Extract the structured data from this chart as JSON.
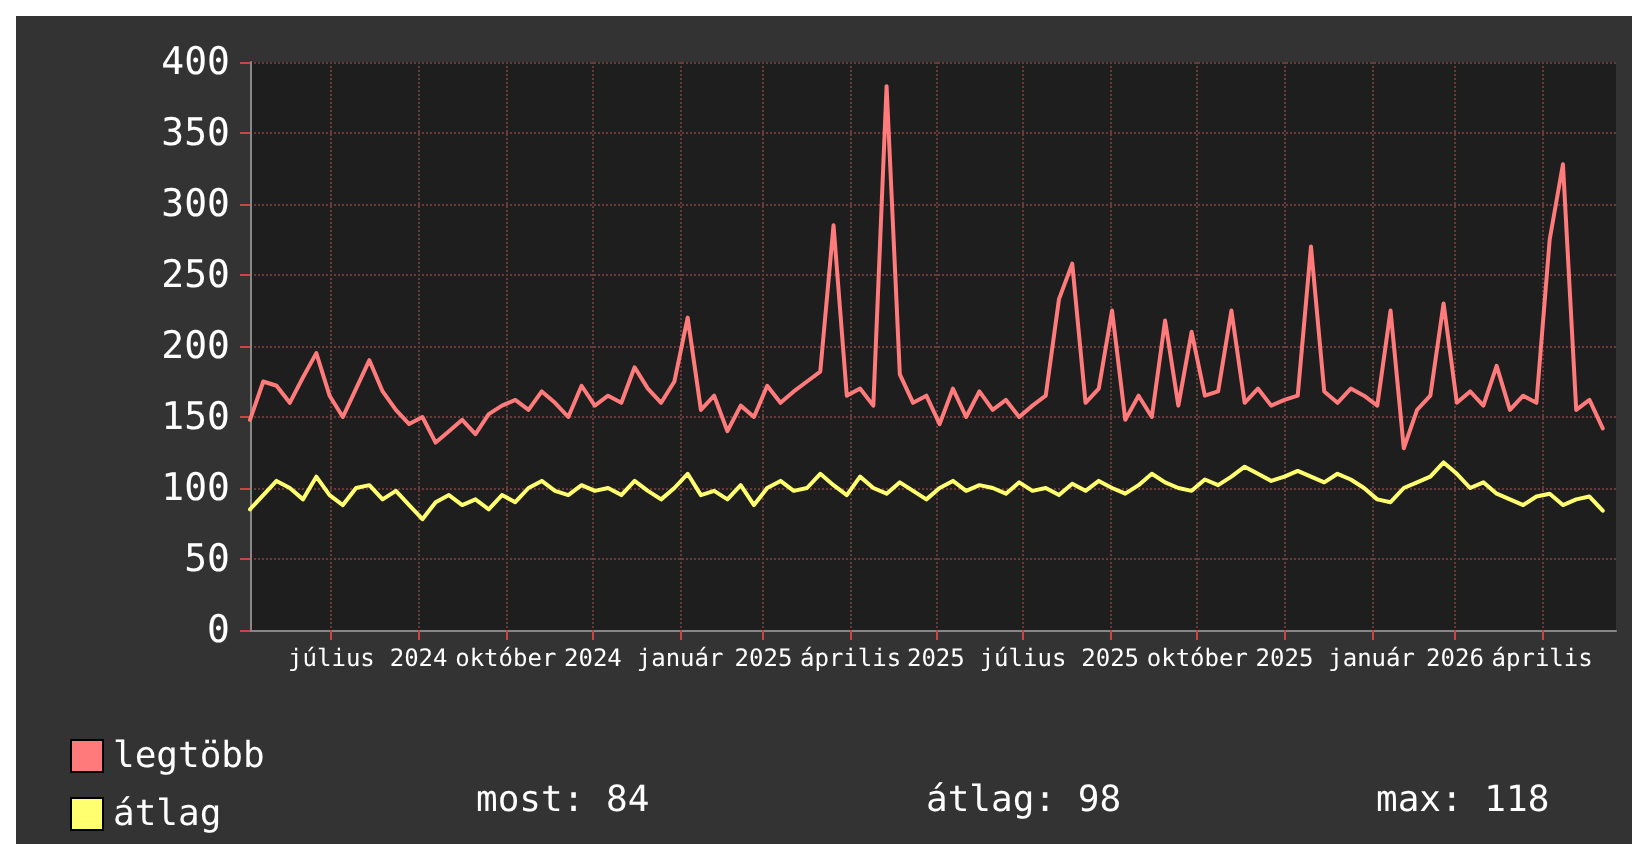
{
  "chart_data": {
    "type": "line",
    "x": [
      "2024-05-19",
      "2024-05-26",
      "2024-06-02",
      "2024-06-09",
      "2024-06-16",
      "2024-06-23",
      "2024-06-30",
      "2024-07-07",
      "2024-07-14",
      "2024-07-21",
      "2024-07-28",
      "2024-08-04",
      "2024-08-11",
      "2024-08-18",
      "2024-08-25",
      "2024-09-01",
      "2024-09-08",
      "2024-09-15",
      "2024-09-22",
      "2024-09-29",
      "2024-10-06",
      "2024-10-13",
      "2024-10-20",
      "2024-10-27",
      "2024-11-03",
      "2024-11-10",
      "2024-11-17",
      "2024-11-24",
      "2024-12-01",
      "2024-12-08",
      "2024-12-15",
      "2024-12-22",
      "2024-12-29",
      "2025-01-05",
      "2025-01-12",
      "2025-01-19",
      "2025-01-26",
      "2025-02-02",
      "2025-02-09",
      "2025-02-16",
      "2025-02-23",
      "2025-03-02",
      "2025-03-09",
      "2025-03-16",
      "2025-03-23",
      "2025-03-30",
      "2025-04-06",
      "2025-04-13",
      "2025-04-20",
      "2025-04-27",
      "2025-05-04",
      "2025-05-11",
      "2025-05-18",
      "2025-05-25",
      "2025-06-01",
      "2025-06-08",
      "2025-06-15",
      "2025-06-22",
      "2025-06-29",
      "2025-07-06",
      "2025-07-13",
      "2025-07-20",
      "2025-07-27",
      "2025-08-03",
      "2025-08-10",
      "2025-08-17",
      "2025-08-24",
      "2025-08-31",
      "2025-09-07",
      "2025-09-14",
      "2025-09-21",
      "2025-09-28",
      "2025-10-05",
      "2025-10-12",
      "2025-10-19",
      "2025-10-26",
      "2025-11-02",
      "2025-11-09",
      "2025-11-16",
      "2025-11-23",
      "2025-11-30",
      "2025-12-07",
      "2025-12-14",
      "2025-12-21",
      "2025-12-28",
      "2026-01-04",
      "2026-01-11",
      "2026-01-18",
      "2026-01-25",
      "2026-02-01",
      "2026-02-08",
      "2026-02-15",
      "2026-02-22",
      "2026-03-01",
      "2026-03-08",
      "2026-03-15",
      "2026-03-22",
      "2026-03-29",
      "2026-04-05",
      "2026-04-12",
      "2026-04-19",
      "2026-04-26",
      "2026-05-03"
    ],
    "series": [
      {
        "name": "legtöbb",
        "color": "#ff7a7a",
        "values": [
          148,
          175,
          172,
          160,
          178,
          195,
          165,
          150,
          170,
          190,
          168,
          155,
          145,
          150,
          132,
          140,
          148,
          138,
          152,
          158,
          162,
          155,
          168,
          160,
          150,
          172,
          158,
          165,
          160,
          185,
          170,
          160,
          175,
          220,
          155,
          165,
          140,
          158,
          150,
          172,
          160,
          168,
          175,
          182,
          285,
          165,
          170,
          158,
          383,
          180,
          160,
          165,
          145,
          170,
          150,
          168,
          155,
          162,
          150,
          158,
          165,
          233,
          258,
          160,
          170,
          225,
          148,
          165,
          150,
          218,
          158,
          210,
          165,
          168,
          225,
          160,
          170,
          158,
          162,
          165,
          270,
          168,
          160,
          170,
          165,
          158,
          225,
          128,
          155,
          165,
          230,
          160,
          168,
          158,
          186,
          155,
          165,
          160,
          275,
          328,
          155,
          162,
          142
        ]
      },
      {
        "name": "átlag",
        "color": "#ffff70",
        "values": [
          85,
          95,
          105,
          100,
          92,
          108,
          95,
          88,
          100,
          102,
          92,
          98,
          88,
          78,
          90,
          95,
          88,
          92,
          85,
          95,
          90,
          100,
          105,
          98,
          95,
          102,
          98,
          100,
          95,
          105,
          98,
          92,
          100,
          110,
          95,
          98,
          92,
          102,
          88,
          100,
          105,
          98,
          100,
          110,
          102,
          95,
          108,
          100,
          96,
          104,
          98,
          92,
          100,
          105,
          98,
          102,
          100,
          96,
          104,
          98,
          100,
          95,
          103,
          98,
          105,
          100,
          96,
          102,
          110,
          104,
          100,
          98,
          106,
          102,
          108,
          115,
          110,
          105,
          108,
          112,
          108,
          104,
          110,
          106,
          100,
          92,
          90,
          100,
          104,
          108,
          118,
          110,
          100,
          104,
          96,
          92,
          88,
          94,
          96,
          88,
          92,
          94,
          84
        ]
      }
    ],
    "xlim": [
      "2024-05-19",
      "2026-05-10"
    ],
    "xticks": [
      {
        "value": "2024-07-01",
        "label": "július"
      },
      {
        "value": "2024-08-16",
        "label": "2024"
      },
      {
        "value": "2024-10-01",
        "label": "október"
      },
      {
        "value": "2024-11-16",
        "label": "2024"
      },
      {
        "value": "2025-01-01",
        "label": "január"
      },
      {
        "value": "2025-02-14",
        "label": "2025"
      },
      {
        "value": "2025-04-01",
        "label": "április"
      },
      {
        "value": "2025-05-16",
        "label": "2025"
      },
      {
        "value": "2025-07-01",
        "label": "július"
      },
      {
        "value": "2025-08-16",
        "label": "2025"
      },
      {
        "value": "2025-10-01",
        "label": "október"
      },
      {
        "value": "2025-11-16",
        "label": "2025"
      },
      {
        "value": "2026-01-01",
        "label": "január"
      },
      {
        "value": "2026-02-14",
        "label": "2026"
      },
      {
        "value": "2026-04-01",
        "label": "április"
      }
    ],
    "ylim": [
      0,
      400
    ],
    "yticks": [
      0,
      50,
      100,
      150,
      200,
      250,
      300,
      350,
      400
    ],
    "grid": true,
    "legend": "bottom left",
    "marker": "none",
    "line_style": "solid",
    "annotations": [
      "most: 84",
      "átlag: 98",
      "max: 118"
    ]
  }
}
